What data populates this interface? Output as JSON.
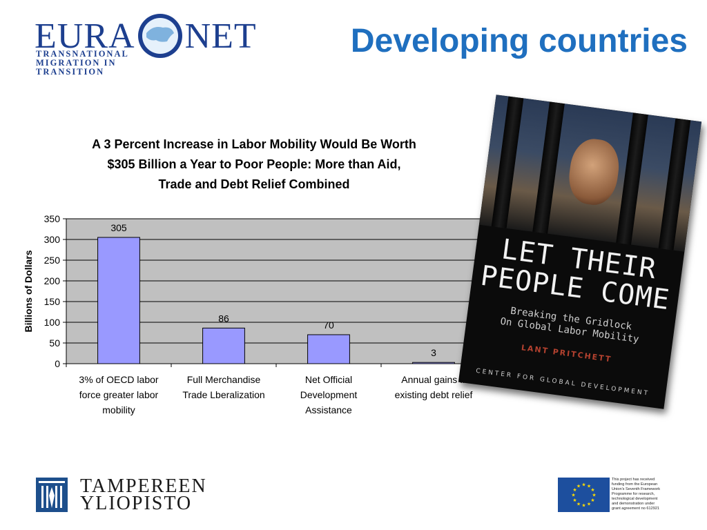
{
  "header": {
    "logo_left": "EURA",
    "logo_right": "NET",
    "logo_subtitle": [
      "TRANSNATIONAL",
      "MIGRATION IN",
      "TRANSITION"
    ],
    "title": "Developing countries"
  },
  "chart_data": {
    "type": "bar",
    "title": [
      "A 3 Percent Increase in Labor Mobility Would Be Worth",
      "$305 Billion a Year to Poor People: More than Aid,",
      "Trade and Debt Relief Combined"
    ],
    "ylabel": "Billions of Dollars",
    "xlabel": "",
    "ylim": [
      0,
      350
    ],
    "yticks": [
      0,
      50,
      100,
      150,
      200,
      250,
      300,
      350
    ],
    "categories": [
      [
        "3% of OECD labor",
        "force greater labor",
        "mobility"
      ],
      [
        "Full Merchandise",
        "Trade Lberalization"
      ],
      [
        "Net Official",
        "Development",
        "Assistance"
      ],
      [
        "Annual gains fr",
        "existing debt relief"
      ]
    ],
    "values": [
      305,
      86,
      70,
      3
    ],
    "data_labels": [
      "305",
      "86",
      "70",
      "3"
    ],
    "grid": true,
    "legend": "none",
    "bar_color": "#9999ff",
    "plot_background": "#c0c0c0"
  },
  "book": {
    "title": [
      "LET THEIR",
      "PEOPLE COME"
    ],
    "subtitle": [
      "Breaking the Gridlock",
      "On Global Labor Mobility"
    ],
    "author": "LANT PRITCHETT",
    "publisher": "CENTER FOR GLOBAL DEVELOPMENT"
  },
  "footer": {
    "university": [
      "TAMPEREEN",
      "YLIOPISTO"
    ],
    "eu_note": [
      "This project has received",
      "funding from the European",
      "Union's Seventh Framework",
      "Programme for research,",
      "technological development",
      "and demonstration under",
      "grant agreement no 612921"
    ]
  },
  "colors": {
    "title_blue": "#1f6fbf",
    "logo_blue": "#1d3f8f",
    "eu_blue": "#1d4f9e"
  }
}
